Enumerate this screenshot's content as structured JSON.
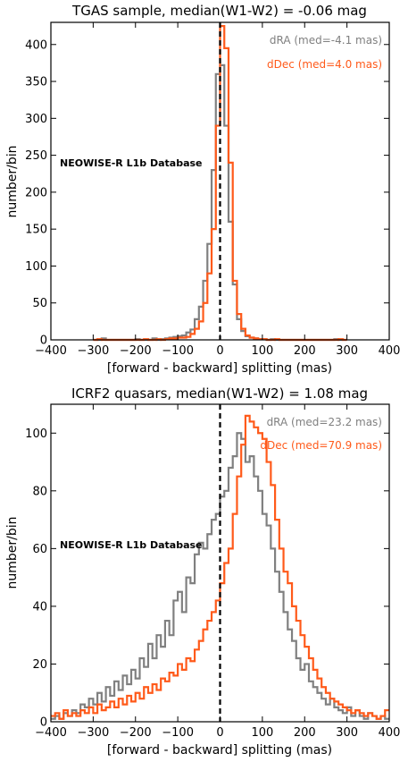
{
  "chart_data": [
    {
      "type": "histogram",
      "title": "TGAS sample, median(W1-W2) = -0.06 mag",
      "xlabel": "[forward - backward] splitting (mas)",
      "ylabel": "number/bin",
      "xlim": [
        -400,
        400
      ],
      "ylim": [
        0,
        430
      ],
      "xticks": [
        -400,
        -300,
        -200,
        -100,
        0,
        100,
        200,
        300,
        400
      ],
      "yticks": [
        0,
        50,
        100,
        150,
        200,
        250,
        300,
        350,
        400
      ],
      "bin_width": 10,
      "annotation": "NEOWISE-R L1b Database",
      "vline_x": 0,
      "series": [
        {
          "name": "dRA (med=-4.1 mas)",
          "color": "#808080",
          "bins": [
            [
              -300,
              0
            ],
            [
              -290,
              0
            ],
            [
              -280,
              2
            ],
            [
              -270,
              0
            ],
            [
              -260,
              0
            ],
            [
              -250,
              0
            ],
            [
              -240,
              0
            ],
            [
              -230,
              0
            ],
            [
              -220,
              0
            ],
            [
              -210,
              0
            ],
            [
              -200,
              1
            ],
            [
              -190,
              0
            ],
            [
              -180,
              0
            ],
            [
              -170,
              0
            ],
            [
              -160,
              2
            ],
            [
              -150,
              0
            ],
            [
              -140,
              1
            ],
            [
              -130,
              2
            ],
            [
              -120,
              3
            ],
            [
              -110,
              4
            ],
            [
              -100,
              5
            ],
            [
              -90,
              6
            ],
            [
              -80,
              10
            ],
            [
              -70,
              14
            ],
            [
              -60,
              28
            ],
            [
              -50,
              45
            ],
            [
              -40,
              80
            ],
            [
              -30,
              130
            ],
            [
              -20,
              230
            ],
            [
              -10,
              360
            ],
            [
              0,
              372
            ],
            [
              10,
              290
            ],
            [
              20,
              160
            ],
            [
              30,
              75
            ],
            [
              40,
              28
            ],
            [
              50,
              12
            ],
            [
              60,
              5
            ],
            [
              70,
              3
            ],
            [
              80,
              2
            ],
            [
              90,
              1
            ],
            [
              100,
              1
            ],
            [
              110,
              0
            ],
            [
              120,
              1
            ],
            [
              130,
              0
            ],
            [
              140,
              0
            ],
            [
              150,
              0
            ],
            [
              160,
              0
            ],
            [
              170,
              0
            ],
            [
              180,
              0
            ],
            [
              190,
              0
            ],
            [
              200,
              0
            ],
            [
              210,
              0
            ],
            [
              220,
              0
            ],
            [
              230,
              0
            ],
            [
              240,
              0
            ],
            [
              250,
              0
            ],
            [
              260,
              0
            ],
            [
              270,
              1
            ],
            [
              280,
              0
            ],
            [
              290,
              0
            ]
          ]
        },
        {
          "name": "dDec (med=4.0 mas)",
          "color": "#ff5a1a",
          "bins": [
            [
              -300,
              0
            ],
            [
              -290,
              1
            ],
            [
              -280,
              0
            ],
            [
              -270,
              0
            ],
            [
              -260,
              0
            ],
            [
              -250,
              0
            ],
            [
              -240,
              0
            ],
            [
              -230,
              0
            ],
            [
              -220,
              0
            ],
            [
              -210,
              0
            ],
            [
              -200,
              0
            ],
            [
              -190,
              0
            ],
            [
              -180,
              1
            ],
            [
              -170,
              0
            ],
            [
              -160,
              0
            ],
            [
              -150,
              1
            ],
            [
              -140,
              0
            ],
            [
              -130,
              1
            ],
            [
              -120,
              2
            ],
            [
              -110,
              2
            ],
            [
              -100,
              3
            ],
            [
              -90,
              3
            ],
            [
              -80,
              4
            ],
            [
              -70,
              8
            ],
            [
              -60,
              15
            ],
            [
              -50,
              25
            ],
            [
              -40,
              50
            ],
            [
              -30,
              90
            ],
            [
              -20,
              150
            ],
            [
              -10,
              290
            ],
            [
              0,
              425
            ],
            [
              10,
              395
            ],
            [
              20,
              240
            ],
            [
              30,
              80
            ],
            [
              40,
              35
            ],
            [
              50,
              15
            ],
            [
              60,
              6
            ],
            [
              70,
              3
            ],
            [
              80,
              2
            ],
            [
              90,
              1
            ],
            [
              100,
              1
            ],
            [
              110,
              0
            ],
            [
              120,
              0
            ],
            [
              130,
              1
            ],
            [
              140,
              0
            ],
            [
              150,
              0
            ],
            [
              160,
              0
            ],
            [
              170,
              0
            ],
            [
              180,
              0
            ],
            [
              190,
              0
            ],
            [
              200,
              0
            ],
            [
              210,
              0
            ],
            [
              220,
              0
            ],
            [
              230,
              0
            ],
            [
              240,
              0
            ],
            [
              250,
              0
            ],
            [
              260,
              0
            ],
            [
              270,
              0
            ],
            [
              280,
              1
            ],
            [
              290,
              0
            ]
          ]
        }
      ]
    },
    {
      "type": "histogram",
      "title": "ICRF2 quasars, median(W1-W2) = 1.08 mag",
      "xlabel": "[forward - backward] splitting (mas)",
      "ylabel": "number/bin",
      "xlim": [
        -400,
        400
      ],
      "ylim": [
        0,
        110
      ],
      "xticks": [
        -400,
        -300,
        -200,
        -100,
        0,
        100,
        200,
        300,
        400
      ],
      "yticks": [
        0,
        20,
        40,
        60,
        80,
        100
      ],
      "bin_width": 10,
      "annotation": "NEOWISE-R L1b Database",
      "vline_x": 0,
      "series": [
        {
          "name": "dRA (med=23.2 mas)",
          "color": "#808080",
          "bins": [
            [
              -400,
              1
            ],
            [
              -390,
              2
            ],
            [
              -380,
              1
            ],
            [
              -370,
              3
            ],
            [
              -360,
              2
            ],
            [
              -350,
              4
            ],
            [
              -340,
              3
            ],
            [
              -330,
              6
            ],
            [
              -320,
              5
            ],
            [
              -310,
              8
            ],
            [
              -300,
              6
            ],
            [
              -290,
              10
            ],
            [
              -280,
              7
            ],
            [
              -270,
              12
            ],
            [
              -260,
              9
            ],
            [
              -250,
              14
            ],
            [
              -240,
              11
            ],
            [
              -230,
              16
            ],
            [
              -220,
              13
            ],
            [
              -210,
              18
            ],
            [
              -200,
              15
            ],
            [
              -190,
              22
            ],
            [
              -180,
              19
            ],
            [
              -170,
              27
            ],
            [
              -160,
              22
            ],
            [
              -150,
              30
            ],
            [
              -140,
              26
            ],
            [
              -130,
              35
            ],
            [
              -120,
              30
            ],
            [
              -110,
              42
            ],
            [
              -100,
              45
            ],
            [
              -90,
              38
            ],
            [
              -80,
              50
            ],
            [
              -70,
              48
            ],
            [
              -60,
              58
            ],
            [
              -50,
              62
            ],
            [
              -40,
              60
            ],
            [
              -30,
              65
            ],
            [
              -20,
              70
            ],
            [
              -10,
              72
            ],
            [
              0,
              78
            ],
            [
              10,
              80
            ],
            [
              20,
              88
            ],
            [
              30,
              92
            ],
            [
              40,
              100
            ],
            [
              50,
              98
            ],
            [
              60,
              90
            ],
            [
              70,
              92
            ],
            [
              80,
              85
            ],
            [
              90,
              80
            ],
            [
              100,
              72
            ],
            [
              110,
              68
            ],
            [
              120,
              60
            ],
            [
              130,
              52
            ],
            [
              140,
              45
            ],
            [
              150,
              38
            ],
            [
              160,
              32
            ],
            [
              170,
              28
            ],
            [
              180,
              22
            ],
            [
              190,
              18
            ],
            [
              200,
              20
            ],
            [
              210,
              14
            ],
            [
              220,
              12
            ],
            [
              230,
              10
            ],
            [
              240,
              8
            ],
            [
              250,
              6
            ],
            [
              260,
              8
            ],
            [
              270,
              5
            ],
            [
              280,
              4
            ],
            [
              290,
              3
            ],
            [
              300,
              5
            ],
            [
              310,
              2
            ],
            [
              320,
              4
            ],
            [
              330,
              2
            ],
            [
              340,
              1
            ],
            [
              350,
              3
            ],
            [
              360,
              2
            ],
            [
              370,
              1
            ],
            [
              380,
              2
            ],
            [
              390,
              1
            ]
          ]
        },
        {
          "name": "dDec (med=70.9 mas)",
          "color": "#ff5a1a",
          "bins": [
            [
              -400,
              2
            ],
            [
              -390,
              3
            ],
            [
              -380,
              1
            ],
            [
              -370,
              4
            ],
            [
              -360,
              2
            ],
            [
              -350,
              3
            ],
            [
              -340,
              2
            ],
            [
              -330,
              4
            ],
            [
              -320,
              3
            ],
            [
              -310,
              5
            ],
            [
              -300,
              3
            ],
            [
              -290,
              6
            ],
            [
              -280,
              4
            ],
            [
              -270,
              5
            ],
            [
              -260,
              7
            ],
            [
              -250,
              5
            ],
            [
              -240,
              8
            ],
            [
              -230,
              6
            ],
            [
              -220,
              9
            ],
            [
              -210,
              7
            ],
            [
              -200,
              10
            ],
            [
              -190,
              8
            ],
            [
              -180,
              12
            ],
            [
              -170,
              10
            ],
            [
              -160,
              13
            ],
            [
              -150,
              11
            ],
            [
              -140,
              15
            ],
            [
              -130,
              14
            ],
            [
              -120,
              17
            ],
            [
              -110,
              16
            ],
            [
              -100,
              20
            ],
            [
              -90,
              18
            ],
            [
              -80,
              22
            ],
            [
              -70,
              21
            ],
            [
              -60,
              25
            ],
            [
              -50,
              28
            ],
            [
              -40,
              32
            ],
            [
              -30,
              35
            ],
            [
              -20,
              38
            ],
            [
              -10,
              42
            ],
            [
              0,
              48
            ],
            [
              10,
              55
            ],
            [
              20,
              60
            ],
            [
              30,
              72
            ],
            [
              40,
              85
            ],
            [
              50,
              96
            ],
            [
              60,
              106
            ],
            [
              70,
              104
            ],
            [
              80,
              102
            ],
            [
              90,
              100
            ],
            [
              100,
              98
            ],
            [
              110,
              90
            ],
            [
              120,
              82
            ],
            [
              130,
              70
            ],
            [
              140,
              60
            ],
            [
              150,
              52
            ],
            [
              160,
              48
            ],
            [
              170,
              40
            ],
            [
              180,
              35
            ],
            [
              190,
              30
            ],
            [
              200,
              26
            ],
            [
              210,
              22
            ],
            [
              220,
              18
            ],
            [
              230,
              15
            ],
            [
              240,
              12
            ],
            [
              250,
              10
            ],
            [
              260,
              8
            ],
            [
              270,
              7
            ],
            [
              280,
              6
            ],
            [
              290,
              5
            ],
            [
              300,
              4
            ],
            [
              310,
              3
            ],
            [
              320,
              4
            ],
            [
              330,
              3
            ],
            [
              340,
              2
            ],
            [
              350,
              3
            ],
            [
              360,
              2
            ],
            [
              370,
              1
            ],
            [
              380,
              2
            ],
            [
              390,
              4
            ]
          ]
        }
      ]
    }
  ]
}
